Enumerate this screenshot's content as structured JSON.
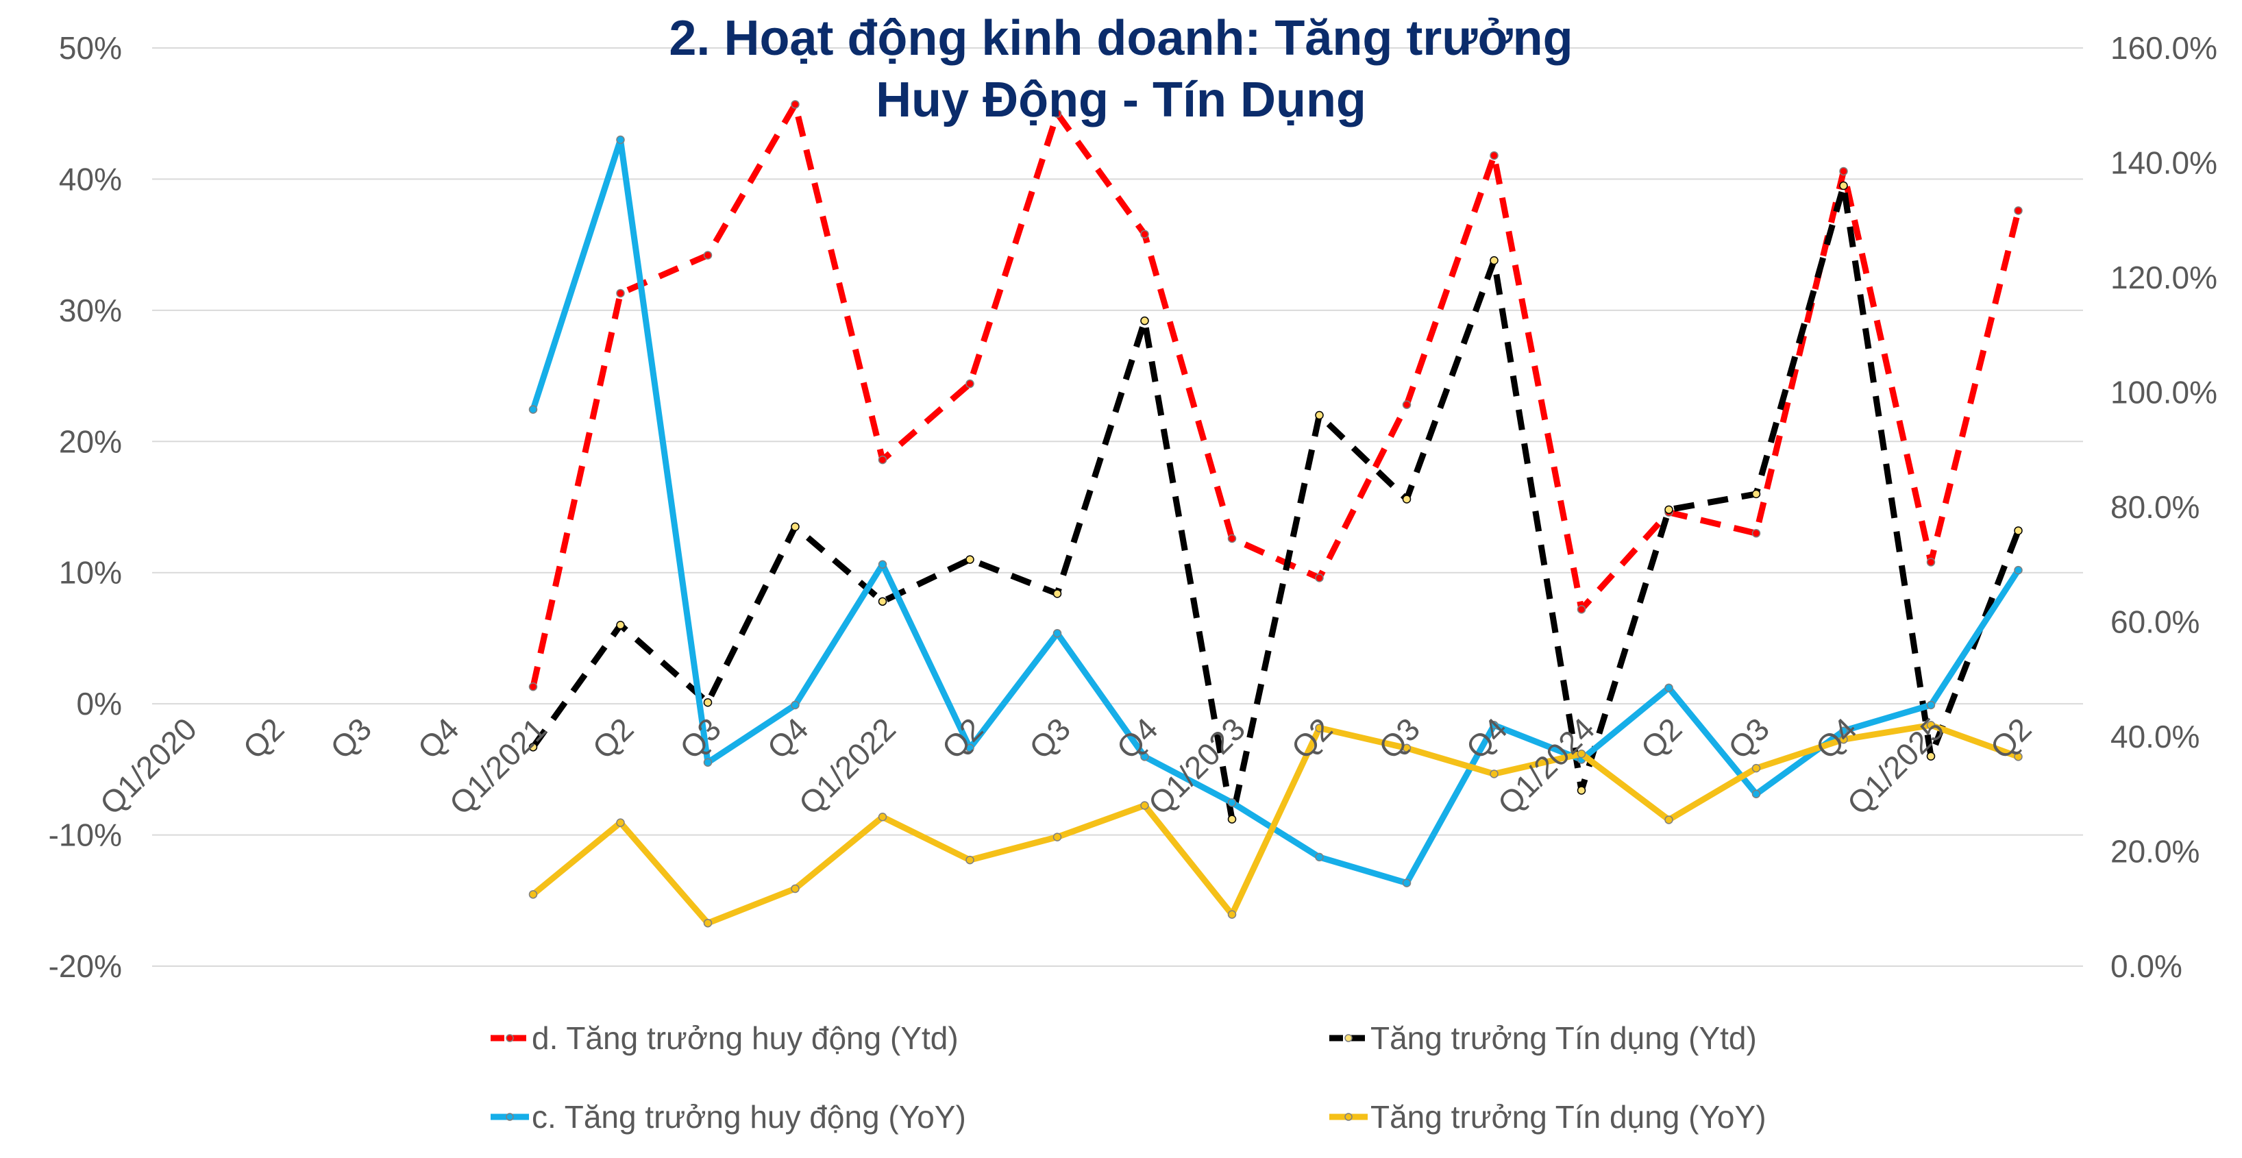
{
  "chart_data": {
    "type": "line",
    "title_lines": [
      "2. Hoạt động kinh doanh: Tăng trưởng",
      "Huy Động - Tín Dụng"
    ],
    "categories": [
      "Q1/2020",
      "Q2",
      "Q3",
      "Q4",
      "Q1/2021",
      "Q2",
      "Q3",
      "Q4",
      "Q1/2022",
      "Q2",
      "Q3",
      "Q4",
      "Q1/2023",
      "Q2",
      "Q3",
      "Q4",
      "Q1/2024",
      "Q2",
      "Q3",
      "Q4",
      "Q1/2025",
      "Q2"
    ],
    "y_left": {
      "min": -20,
      "max": 50,
      "step": 10,
      "ticks": [
        "50%",
        "40%",
        "30%",
        "20%",
        "10%",
        "0%",
        "-10%",
        "-20%"
      ]
    },
    "y_right": {
      "min": 0,
      "max": 160,
      "step": 20,
      "ticks": [
        "160.0%",
        "140.0%",
        "120.0%",
        "100.0%",
        "80.0%",
        "60.0%",
        "40.0%",
        "20.0%",
        "0.0%"
      ]
    },
    "grid": true,
    "legend_position": "bottom",
    "series": [
      {
        "name": "d. Tăng trưởng huy động (Ytd)",
        "axis": "left",
        "color": "#FF0000",
        "dash": true,
        "values": [
          null,
          null,
          null,
          null,
          1.3,
          31.3,
          34.2,
          45.7,
          18.6,
          24.4,
          45.0,
          35.8,
          12.6,
          9.6,
          22.8,
          41.8,
          7.2,
          14.6,
          13.0,
          40.6,
          10.8,
          37.6
        ]
      },
      {
        "name": "Tăng trưởng Tín dụng (Ytd)",
        "axis": "left",
        "color": "#000000",
        "dash": true,
        "values": [
          null,
          null,
          null,
          null,
          -3.3,
          6.0,
          0.1,
          13.5,
          7.8,
          11.0,
          8.4,
          29.2,
          -8.8,
          22.0,
          15.6,
          33.8,
          -6.6,
          14.8,
          16.0,
          39.5,
          -4.0,
          13.2
        ]
      },
      {
        "name": "c. Tăng trưởng huy động (YoY)",
        "axis": "right",
        "color": "#16AEE8",
        "dash": false,
        "values": [
          null,
          null,
          null,
          null,
          97.0,
          144.0,
          35.5,
          45.5,
          70.0,
          38.0,
          58.0,
          36.5,
          28.5,
          19.0,
          14.5,
          42.0,
          36.0,
          48.5,
          30.0,
          41.0,
          45.5,
          69.0
        ]
      },
      {
        "name": "Tăng trưởng Tín dụng (YoY)",
        "axis": "right",
        "color": "#F5C018",
        "dash": false,
        "values": [
          null,
          null,
          null,
          null,
          12.5,
          25.0,
          7.5,
          13.5,
          26.0,
          18.5,
          22.5,
          28.0,
          9.0,
          41.5,
          38.0,
          33.5,
          37.0,
          25.5,
          34.5,
          39.5,
          42.0,
          36.5
        ]
      }
    ]
  }
}
